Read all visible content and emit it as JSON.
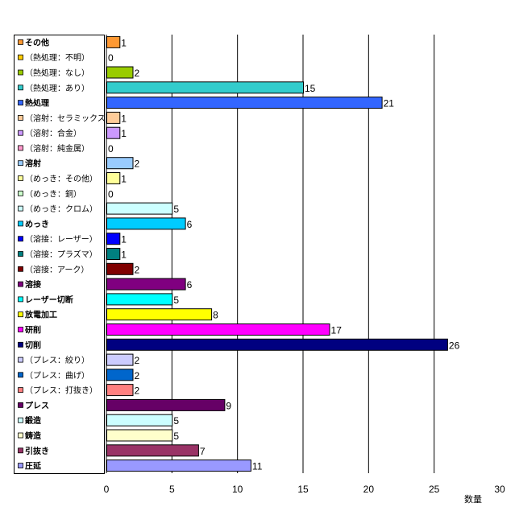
{
  "chart_data": {
    "type": "bar",
    "orientation": "horizontal",
    "xlabel": "数量",
    "xlim": [
      0,
      30
    ],
    "xticks": [
      0,
      5,
      10,
      15,
      20,
      25,
      30
    ],
    "grid": true,
    "legend_position": "left",
    "categories": [
      {
        "label": "その他",
        "bold": true,
        "value": 1,
        "color": "#ff9933"
      },
      {
        "label": "（熱処理：不明）",
        "bold": false,
        "value": 0,
        "color": "#ffcc00"
      },
      {
        "label": "（熱処理：なし）",
        "bold": false,
        "value": 2,
        "color": "#99cc00"
      },
      {
        "label": "（熱処理：あり）",
        "bold": false,
        "value": 15,
        "color": "#33cccc"
      },
      {
        "label": "熱処理",
        "bold": true,
        "value": 21,
        "color": "#3366ff"
      },
      {
        "label": "（溶射：セラミックス）",
        "bold": false,
        "value": 1,
        "color": "#ffcc99"
      },
      {
        "label": "（溶射：合金）",
        "bold": false,
        "value": 1,
        "color": "#cc99ff"
      },
      {
        "label": "（溶射：純金属）",
        "bold": false,
        "value": 0,
        "color": "#ff99cc"
      },
      {
        "label": "溶射",
        "bold": true,
        "value": 2,
        "color": "#99ccff"
      },
      {
        "label": "（めっき：その他）",
        "bold": false,
        "value": 1,
        "color": "#ffff99"
      },
      {
        "label": "（めっき：銅）",
        "bold": false,
        "value": 0,
        "color": "#ccffcc"
      },
      {
        "label": "（めっき：クロム）",
        "bold": false,
        "value": 5,
        "color": "#ccffff"
      },
      {
        "label": "めっき",
        "bold": true,
        "value": 6,
        "color": "#00ccff"
      },
      {
        "label": "（溶接：レーザー）",
        "bold": false,
        "value": 1,
        "color": "#0000ff"
      },
      {
        "label": "（溶接：プラズマ）",
        "bold": false,
        "value": 1,
        "color": "#008080"
      },
      {
        "label": "（溶接：アーク）",
        "bold": false,
        "value": 2,
        "color": "#800000"
      },
      {
        "label": "溶接",
        "bold": true,
        "value": 6,
        "color": "#800080"
      },
      {
        "label": "レーザー切断",
        "bold": true,
        "value": 5,
        "color": "#00ffff"
      },
      {
        "label": "放電加工",
        "bold": true,
        "value": 8,
        "color": "#ffff00"
      },
      {
        "label": "研削",
        "bold": true,
        "value": 17,
        "color": "#ff00ff"
      },
      {
        "label": "切削",
        "bold": true,
        "value": 26,
        "color": "#000080"
      },
      {
        "label": "（プレス：絞り）",
        "bold": false,
        "value": 2,
        "color": "#ccccff"
      },
      {
        "label": "（プレス：曲げ）",
        "bold": false,
        "value": 2,
        "color": "#0066cc"
      },
      {
        "label": "（プレス：打抜き）",
        "bold": false,
        "value": 2,
        "color": "#ff8080"
      },
      {
        "label": "プレス",
        "bold": true,
        "value": 9,
        "color": "#660066"
      },
      {
        "label": "鍛造",
        "bold": true,
        "value": 5,
        "color": "#ccffff"
      },
      {
        "label": "鋳造",
        "bold": true,
        "value": 5,
        "color": "#ffffcc"
      },
      {
        "label": "引抜き",
        "bold": true,
        "value": 7,
        "color": "#993366"
      },
      {
        "label": "圧延",
        "bold": true,
        "value": 11,
        "color": "#9999ff"
      }
    ]
  }
}
